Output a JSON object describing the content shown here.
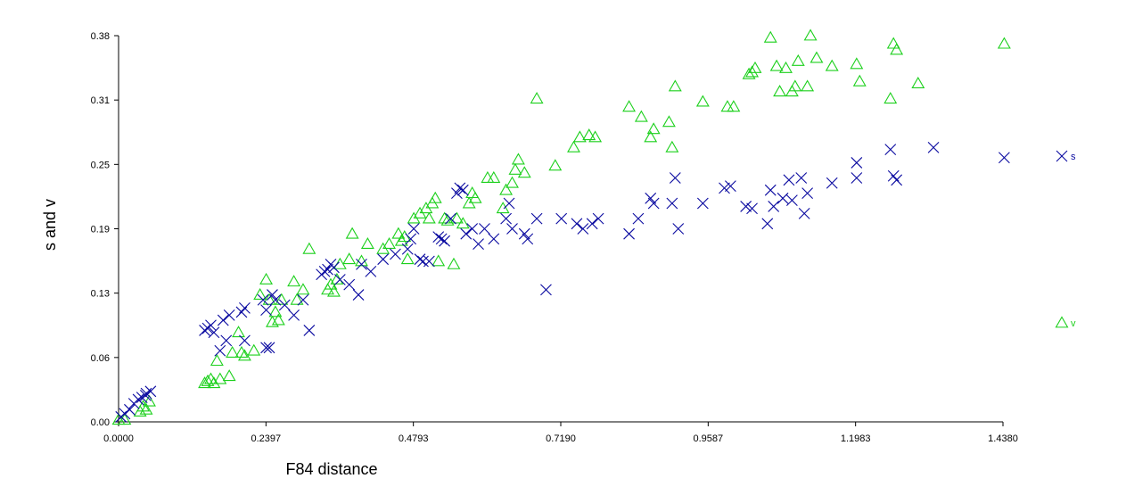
{
  "chart_data": {
    "type": "scatter",
    "xlabel": "F84 distance",
    "ylabel": "s and v",
    "xlim": [
      0,
      1.438
    ],
    "ylim": [
      0,
      0.38
    ],
    "x_ticks": [
      "0.0000",
      "0.2397",
      "0.4793",
      "0.7190",
      "0.9587",
      "1.1983",
      "1.4380"
    ],
    "y_ticks": [
      "0.00",
      "0.06",
      "0.13",
      "0.19",
      "0.25",
      "0.31",
      "0.38"
    ],
    "grid": false,
    "legend_position": "right",
    "series": [
      {
        "name": "s",
        "marker": "x",
        "color": "#0a0aa0",
        "points": [
          [
            0.004,
            0.005
          ],
          [
            0.01,
            0.008
          ],
          [
            0.018,
            0.012
          ],
          [
            0.025,
            0.018
          ],
          [
            0.032,
            0.022
          ],
          [
            0.038,
            0.024
          ],
          [
            0.045,
            0.028
          ],
          [
            0.052,
            0.03
          ],
          [
            0.044,
            0.026
          ],
          [
            0.14,
            0.09
          ],
          [
            0.145,
            0.092
          ],
          [
            0.15,
            0.095
          ],
          [
            0.155,
            0.088
          ],
          [
            0.17,
            0.1
          ],
          [
            0.18,
            0.105
          ],
          [
            0.2,
            0.108
          ],
          [
            0.205,
            0.112
          ],
          [
            0.165,
            0.07
          ],
          [
            0.175,
            0.08
          ],
          [
            0.205,
            0.08
          ],
          [
            0.235,
            0.12
          ],
          [
            0.24,
            0.11
          ],
          [
            0.25,
            0.125
          ],
          [
            0.255,
            0.12
          ],
          [
            0.27,
            0.115
          ],
          [
            0.285,
            0.105
          ],
          [
            0.24,
            0.073
          ],
          [
            0.245,
            0.073
          ],
          [
            0.31,
            0.09
          ],
          [
            0.33,
            0.145
          ],
          [
            0.335,
            0.148
          ],
          [
            0.34,
            0.15
          ],
          [
            0.345,
            0.155
          ],
          [
            0.35,
            0.152
          ],
          [
            0.36,
            0.14
          ],
          [
            0.375,
            0.135
          ],
          [
            0.39,
            0.125
          ],
          [
            0.395,
            0.155
          ],
          [
            0.41,
            0.148
          ],
          [
            0.3,
            0.12
          ],
          [
            0.43,
            0.16
          ],
          [
            0.45,
            0.165
          ],
          [
            0.47,
            0.17
          ],
          [
            0.475,
            0.18
          ],
          [
            0.48,
            0.19
          ],
          [
            0.49,
            0.16
          ],
          [
            0.495,
            0.158
          ],
          [
            0.505,
            0.158
          ],
          [
            0.52,
            0.182
          ],
          [
            0.525,
            0.18
          ],
          [
            0.53,
            0.178
          ],
          [
            0.54,
            0.2
          ],
          [
            0.55,
            0.225
          ],
          [
            0.555,
            0.23
          ],
          [
            0.56,
            0.228
          ],
          [
            0.565,
            0.185
          ],
          [
            0.575,
            0.19
          ],
          [
            0.585,
            0.175
          ],
          [
            0.595,
            0.19
          ],
          [
            0.61,
            0.18
          ],
          [
            0.63,
            0.2
          ],
          [
            0.635,
            0.215
          ],
          [
            0.64,
            0.19
          ],
          [
            0.66,
            0.185
          ],
          [
            0.665,
            0.18
          ],
          [
            0.68,
            0.2
          ],
          [
            0.695,
            0.13
          ],
          [
            0.72,
            0.2
          ],
          [
            0.745,
            0.195
          ],
          [
            0.755,
            0.19
          ],
          [
            0.77,
            0.195
          ],
          [
            0.78,
            0.2
          ],
          [
            0.83,
            0.185
          ],
          [
            0.845,
            0.2
          ],
          [
            0.865,
            0.22
          ],
          [
            0.87,
            0.215
          ],
          [
            0.9,
            0.215
          ],
          [
            0.905,
            0.24
          ],
          [
            0.91,
            0.19
          ],
          [
            0.95,
            0.215
          ],
          [
            0.985,
            0.23
          ],
          [
            0.995,
            0.232
          ],
          [
            1.02,
            0.212
          ],
          [
            1.03,
            0.21
          ],
          [
            1.055,
            0.195
          ],
          [
            1.06,
            0.228
          ],
          [
            1.065,
            0.212
          ],
          [
            1.08,
            0.22
          ],
          [
            1.09,
            0.238
          ],
          [
            1.095,
            0.218
          ],
          [
            1.11,
            0.24
          ],
          [
            1.115,
            0.205
          ],
          [
            1.12,
            0.225
          ],
          [
            1.16,
            0.235
          ],
          [
            1.2,
            0.255
          ],
          [
            1.2,
            0.24
          ],
          [
            1.255,
            0.268
          ],
          [
            1.26,
            0.242
          ],
          [
            1.265,
            0.238
          ],
          [
            1.325,
            0.27
          ],
          [
            1.44,
            0.26
          ]
        ]
      },
      {
        "name": "v",
        "marker": "triangle",
        "color": "#1cd01c",
        "points": [
          [
            0.0,
            0.002
          ],
          [
            0.01,
            0.002
          ],
          [
            0.035,
            0.01
          ],
          [
            0.04,
            0.015
          ],
          [
            0.045,
            0.012
          ],
          [
            0.05,
            0.02
          ],
          [
            0.14,
            0.038
          ],
          [
            0.145,
            0.04
          ],
          [
            0.15,
            0.042
          ],
          [
            0.155,
            0.038
          ],
          [
            0.16,
            0.06
          ],
          [
            0.165,
            0.042
          ],
          [
            0.18,
            0.045
          ],
          [
            0.185,
            0.068
          ],
          [
            0.195,
            0.088
          ],
          [
            0.2,
            0.068
          ],
          [
            0.205,
            0.065
          ],
          [
            0.22,
            0.07
          ],
          [
            0.23,
            0.125
          ],
          [
            0.24,
            0.14
          ],
          [
            0.245,
            0.12
          ],
          [
            0.25,
            0.098
          ],
          [
            0.255,
            0.108
          ],
          [
            0.26,
            0.1
          ],
          [
            0.265,
            0.12
          ],
          [
            0.285,
            0.138
          ],
          [
            0.29,
            0.12
          ],
          [
            0.3,
            0.13
          ],
          [
            0.31,
            0.17
          ],
          [
            0.34,
            0.13
          ],
          [
            0.345,
            0.135
          ],
          [
            0.35,
            0.128
          ],
          [
            0.355,
            0.14
          ],
          [
            0.36,
            0.155
          ],
          [
            0.375,
            0.16
          ],
          [
            0.38,
            0.185
          ],
          [
            0.395,
            0.158
          ],
          [
            0.405,
            0.175
          ],
          [
            0.43,
            0.17
          ],
          [
            0.44,
            0.175
          ],
          [
            0.455,
            0.185
          ],
          [
            0.46,
            0.178
          ],
          [
            0.465,
            0.182
          ],
          [
            0.47,
            0.16
          ],
          [
            0.48,
            0.2
          ],
          [
            0.49,
            0.205
          ],
          [
            0.5,
            0.21
          ],
          [
            0.505,
            0.2
          ],
          [
            0.51,
            0.215
          ],
          [
            0.515,
            0.22
          ],
          [
            0.52,
            0.158
          ],
          [
            0.53,
            0.2
          ],
          [
            0.535,
            0.198
          ],
          [
            0.545,
            0.155
          ],
          [
            0.55,
            0.2
          ],
          [
            0.56,
            0.195
          ],
          [
            0.57,
            0.215
          ],
          [
            0.575,
            0.225
          ],
          [
            0.58,
            0.22
          ],
          [
            0.6,
            0.24
          ],
          [
            0.61,
            0.24
          ],
          [
            0.625,
            0.21
          ],
          [
            0.63,
            0.228
          ],
          [
            0.64,
            0.235
          ],
          [
            0.645,
            0.248
          ],
          [
            0.65,
            0.258
          ],
          [
            0.66,
            0.245
          ],
          [
            0.68,
            0.318
          ],
          [
            0.71,
            0.252
          ],
          [
            0.74,
            0.27
          ],
          [
            0.75,
            0.28
          ],
          [
            0.765,
            0.282
          ],
          [
            0.775,
            0.28
          ],
          [
            0.83,
            0.31
          ],
          [
            0.85,
            0.3
          ],
          [
            0.865,
            0.28
          ],
          [
            0.87,
            0.288
          ],
          [
            0.895,
            0.295
          ],
          [
            0.9,
            0.27
          ],
          [
            0.905,
            0.33
          ],
          [
            0.95,
            0.315
          ],
          [
            0.99,
            0.31
          ],
          [
            1.0,
            0.31
          ],
          [
            1.025,
            0.342
          ],
          [
            1.03,
            0.344
          ],
          [
            1.035,
            0.348
          ],
          [
            1.06,
            0.378
          ],
          [
            1.07,
            0.35
          ],
          [
            1.075,
            0.325
          ],
          [
            1.085,
            0.348
          ],
          [
            1.095,
            0.325
          ],
          [
            1.1,
            0.33
          ],
          [
            1.105,
            0.355
          ],
          [
            1.12,
            0.33
          ],
          [
            1.125,
            0.38
          ],
          [
            1.135,
            0.358
          ],
          [
            1.16,
            0.35
          ],
          [
            1.2,
            0.352
          ],
          [
            1.205,
            0.335
          ],
          [
            1.255,
            0.318
          ],
          [
            1.26,
            0.372
          ],
          [
            1.265,
            0.366
          ],
          [
            1.3,
            0.333
          ],
          [
            1.44,
            0.372
          ]
        ]
      }
    ]
  }
}
